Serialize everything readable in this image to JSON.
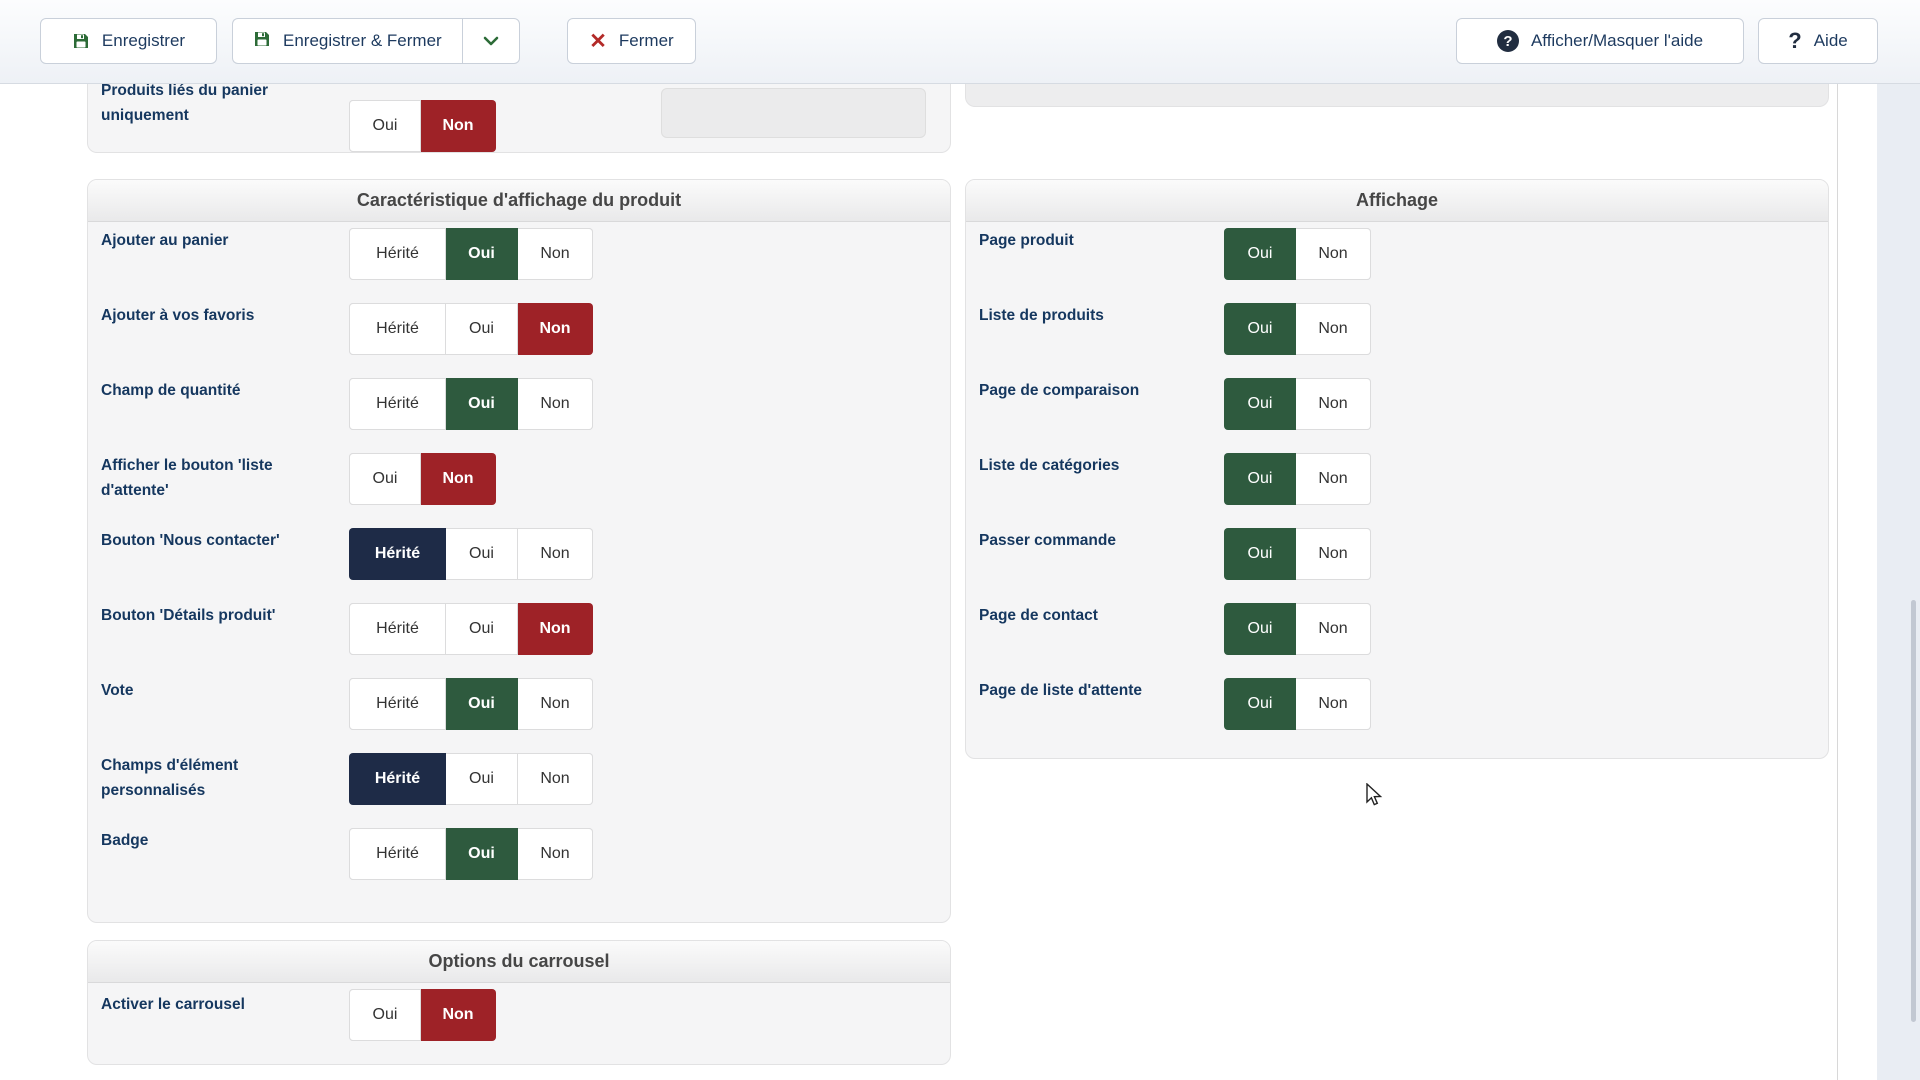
{
  "toolbar": {
    "save_label": "Enregistrer",
    "save_close_label": "Enregistrer & Fermer",
    "close_label": "Fermer",
    "toggle_help_label": "Afficher/Masquer l'aide",
    "help_label": "Aide",
    "icons": [
      "save-icon",
      "chevron-down-icon",
      "close-x-icon",
      "help-circle-icon",
      "question-mark-icon"
    ]
  },
  "colors": {
    "yes_selected": "#2e5a3e",
    "no_selected": "#9e2227",
    "inherit_selected": "#1e2b47",
    "label_text": "#15375f",
    "toolbar_text": "#1d3a5f"
  },
  "option_labels": {
    "inherit": "Hérité",
    "yes": "Oui",
    "no": "Non"
  },
  "panels": {
    "cart_products": {
      "rows": [
        {
          "label": "Produits liés du panier uniquement",
          "options": [
            "yes",
            "no"
          ],
          "selected": "no"
        }
      ]
    },
    "product_display": {
      "title": "Caractéristique d'affichage du produit",
      "rows": [
        {
          "label": "Ajouter au panier",
          "options": [
            "inherit",
            "yes",
            "no"
          ],
          "selected": "yes"
        },
        {
          "label": "Ajouter à vos favoris",
          "options": [
            "inherit",
            "yes",
            "no"
          ],
          "selected": "no"
        },
        {
          "label": "Champ de quantité",
          "options": [
            "inherit",
            "yes",
            "no"
          ],
          "selected": "yes"
        },
        {
          "label": "Afficher le bouton 'liste d'attente'",
          "options": [
            "yes",
            "no"
          ],
          "selected": "no"
        },
        {
          "label": "Bouton 'Nous contacter'",
          "options": [
            "inherit",
            "yes",
            "no"
          ],
          "selected": "inherit"
        },
        {
          "label": "Bouton 'Détails produit'",
          "options": [
            "inherit",
            "yes",
            "no"
          ],
          "selected": "no"
        },
        {
          "label": "Vote",
          "options": [
            "inherit",
            "yes",
            "no"
          ],
          "selected": "yes"
        },
        {
          "label": "Champs d'élément personnalisés",
          "options": [
            "inherit",
            "yes",
            "no"
          ],
          "selected": "inherit"
        },
        {
          "label": "Badge",
          "options": [
            "inherit",
            "yes",
            "no"
          ],
          "selected": "yes"
        }
      ]
    },
    "display": {
      "title": "Affichage",
      "rows": [
        {
          "label": "Page produit",
          "options": [
            "yes",
            "no"
          ],
          "selected": "yes"
        },
        {
          "label": "Liste de produits",
          "options": [
            "yes",
            "no"
          ],
          "selected": "yes"
        },
        {
          "label": "Page de comparaison",
          "options": [
            "yes",
            "no"
          ],
          "selected": "yes"
        },
        {
          "label": "Liste de catégories",
          "options": [
            "yes",
            "no"
          ],
          "selected": "yes"
        },
        {
          "label": "Passer commande",
          "options": [
            "yes",
            "no"
          ],
          "selected": "yes"
        },
        {
          "label": "Page de contact",
          "options": [
            "yes",
            "no"
          ],
          "selected": "yes"
        },
        {
          "label": "Page de liste d'attente",
          "options": [
            "yes",
            "no"
          ],
          "selected": "yes"
        }
      ]
    },
    "carousel": {
      "title": "Options du carrousel",
      "rows": [
        {
          "label": "Activer le carrousel",
          "options": [
            "yes",
            "no"
          ],
          "selected": "no"
        }
      ]
    }
  }
}
